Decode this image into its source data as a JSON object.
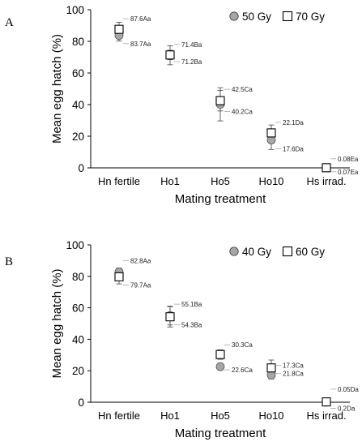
{
  "chart_data": [
    {
      "panel": "A",
      "type": "scatter",
      "categories": [
        "Hn fertile",
        "Ho1",
        "Ho5",
        "Ho10",
        "Hs irrad."
      ],
      "xlabel": "Mating treatment",
      "ylabel": "Mean egg hatch (%)",
      "ylim": [
        0,
        100
      ],
      "yticks": [
        0,
        20,
        40,
        60,
        80,
        100
      ],
      "legend_position": "top-right",
      "series": [
        {
          "name": "50 Gy",
          "marker": "circle",
          "values": [
            83.7,
            71.2,
            40.2,
            17.6,
            0.07
          ],
          "errors": [
            3.5,
            6.0,
            10.5,
            6.0,
            0
          ],
          "labels": [
            "83.7Aa",
            "71.2Ba",
            "40.2Ca",
            "17.6Da",
            "0.07Ea"
          ]
        },
        {
          "name": "70 Gy",
          "marker": "square",
          "values": [
            87.6,
            71.4,
            42.5,
            22.1,
            0.08
          ],
          "errors": [
            4.5,
            3.0,
            6.5,
            5.0,
            0
          ],
          "labels": [
            "87.6Aa",
            "71.4Ba",
            "42.5Ca",
            "22.1Da",
            "0.08Ea"
          ]
        }
      ]
    },
    {
      "panel": "B",
      "type": "scatter",
      "categories": [
        "Hn fertile",
        "Ho1",
        "Ho5",
        "Ho10",
        "Hs irrad."
      ],
      "xlabel": "Mating treatment",
      "ylabel": "Mean egg hatch (%)",
      "ylim": [
        0,
        100
      ],
      "yticks": [
        0,
        20,
        40,
        60,
        80,
        100
      ],
      "legend_position": "top-right",
      "series": [
        {
          "name": "40 Gy",
          "marker": "circle",
          "values": [
            82.8,
            55.1,
            22.6,
            17.3,
            0.05
          ],
          "errors": [
            2.5,
            6.0,
            2.0,
            2.5,
            0
          ],
          "labels": [
            "82.8Aa",
            "55.1Ba",
            "22.6Ca",
            "17.3Ca",
            "0.05Da"
          ]
        },
        {
          "name": "60 Gy",
          "marker": "square",
          "values": [
            79.7,
            54.3,
            30.3,
            21.8,
            0.2
          ],
          "errors": [
            4.5,
            6.5,
            3.0,
            5.0,
            0
          ],
          "labels": [
            "79.7Aa",
            "54.3Ba",
            "30.3Ca",
            "21.8Ca",
            "0.2Da"
          ]
        }
      ]
    }
  ]
}
